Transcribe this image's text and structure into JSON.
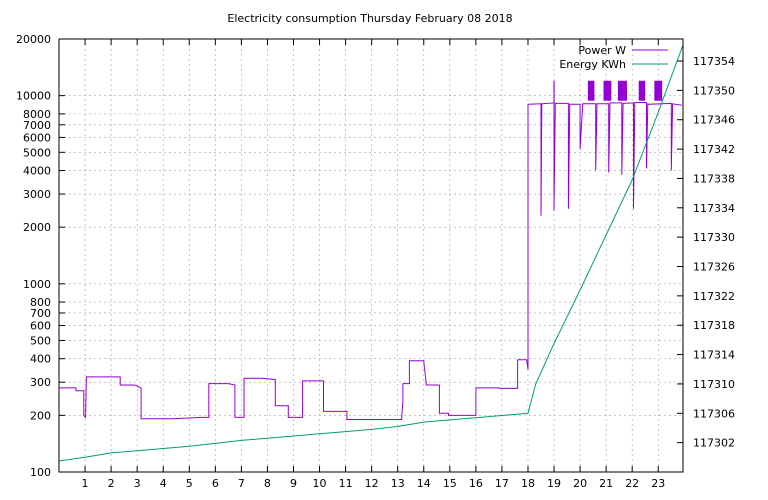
{
  "chart_data": {
    "type": "line",
    "title": "Electricity consumption Thursday February 08 2018",
    "xlabel": "",
    "ylabel": "",
    "y2label": "",
    "x_ticks": [
      1,
      2,
      3,
      4,
      5,
      6,
      7,
      8,
      9,
      10,
      11,
      12,
      13,
      14,
      15,
      16,
      17,
      18,
      19,
      20,
      21,
      22,
      23
    ],
    "xlim": [
      0,
      23.95
    ],
    "y_scale": "log",
    "ylim": [
      100,
      20000
    ],
    "y_ticks": [
      100,
      200,
      300,
      400,
      500,
      600,
      700,
      800,
      1000,
      2000,
      3000,
      4000,
      5000,
      6000,
      7000,
      8000,
      10000,
      20000
    ],
    "y2lim": [
      117298,
      117357
    ],
    "y2_ticks": [
      117302,
      117306,
      117310,
      117314,
      117318,
      117322,
      117326,
      117330,
      117334,
      117338,
      117342,
      117346,
      117350,
      117354
    ],
    "grid": true,
    "legend_position": "top-right",
    "series": [
      {
        "name": "Power W",
        "color": "#9400d3",
        "axis": "y",
        "x": [
          0,
          0.65,
          0.65,
          0.95,
          0.95,
          1.02,
          1.05,
          1.05,
          1.45,
          2.35,
          2.35,
          2.9,
          3.15,
          3.15,
          4.35,
          5.5,
          5.75,
          5.75,
          6.5,
          6.75,
          6.75,
          7.1,
          7.1,
          7.75,
          8.3,
          8.3,
          8.8,
          8.8,
          9.35,
          9.35,
          10.15,
          10.15,
          11.05,
          11.05,
          13.15,
          13.2,
          13.2,
          13.45,
          13.45,
          14,
          14,
          14.1,
          14.6,
          14.6,
          14.95,
          14.95,
          16,
          16,
          16.9,
          16.9,
          17.6,
          17.6,
          17.95,
          18,
          18,
          18.03,
          18.03,
          18.5,
          18.5,
          18.53,
          18.53,
          19,
          19,
          19.05,
          19.05,
          19.55,
          19.55,
          19.6,
          19.6,
          20,
          20,
          20.1,
          20.1,
          20.6,
          20.6,
          20.65,
          20.65,
          21.1,
          21.1,
          21.15,
          21.15,
          21.6,
          21.6,
          21.65,
          21.65,
          22.05,
          22.05,
          22.1,
          22.1,
          22.55,
          22.55,
          22.6,
          22.6,
          23.5,
          23.5,
          23.55,
          23.55,
          23.9
        ],
        "y": [
          280,
          280,
          270,
          270,
          200,
          195,
          320,
          320,
          320,
          320,
          290,
          290,
          280,
          192,
          192,
          195,
          195,
          295,
          295,
          290,
          195,
          195,
          315,
          315,
          310,
          225,
          225,
          195,
          195,
          305,
          305,
          210,
          210,
          190,
          190,
          240,
          295,
          295,
          390,
          390,
          385,
          290,
          290,
          205,
          205,
          200,
          200,
          280,
          280,
          278,
          278,
          395,
          395,
          350,
          9000,
          9000,
          9000,
          9050,
          2300,
          9050,
          9050,
          9150,
          2450,
          9150,
          9100,
          9100,
          2500,
          8900,
          9000,
          9000,
          5200,
          9000,
          9050,
          9050,
          4000,
          9000,
          9050,
          9050,
          3900,
          9100,
          9150,
          9150,
          3800,
          9100,
          9100,
          9150,
          2500,
          9100,
          9200,
          9200,
          4100,
          9100,
          9000,
          9100,
          4000,
          9000,
          9050,
          8900
        ]
      },
      {
        "name": "Energy KWh",
        "color": "#009e73",
        "axis": "y2",
        "x": [
          0,
          1,
          2,
          3,
          4,
          5,
          6,
          7,
          8,
          9,
          10,
          11,
          12,
          13,
          14,
          15,
          16,
          17,
          18,
          18.3,
          19,
          20,
          21,
          22,
          23,
          23.95
        ],
        "y": [
          117299.5,
          117300.0,
          117300.6,
          117300.9,
          117301.2,
          117301.5,
          117301.9,
          117302.3,
          117302.6,
          117302.9,
          117303.2,
          117303.5,
          117303.8,
          117304.2,
          117304.8,
          117305.1,
          117305.4,
          117305.7,
          117306.0,
          117310.0,
          117315.5,
          117322.8,
          117330.3,
          117337.8,
          117347.0,
          117356.2
        ]
      }
    ],
    "burst_bands": [
      {
        "x0": 20.3,
        "x1": 20.55,
        "y0": 9400,
        "y1": 12000
      },
      {
        "x0": 20.9,
        "x1": 21.2,
        "y0": 9400,
        "y1": 12000
      },
      {
        "x0": 21.45,
        "x1": 21.8,
        "y0": 9400,
        "y1": 12000
      },
      {
        "x0": 22.25,
        "x1": 22.5,
        "y0": 9400,
        "y1": 12000
      },
      {
        "x0": 22.85,
        "x1": 23.15,
        "y0": 9400,
        "y1": 12000
      }
    ],
    "spike_marks": [
      {
        "x": 19.0,
        "y_low": 9150,
        "y_high": 12000
      }
    ]
  }
}
